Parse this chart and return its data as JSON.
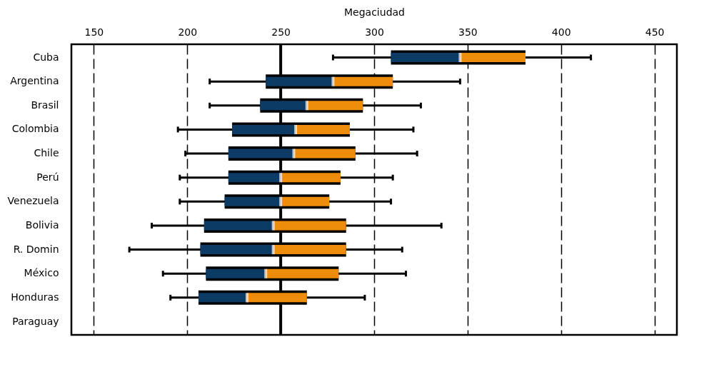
{
  "chart_data": {
    "type": "box",
    "orientation": "horizontal",
    "xlabel": "Megaciudad",
    "categories": [
      "Cuba",
      "Argentina",
      "Brasil",
      "Colombia",
      "Chile",
      "Perú",
      "Venezuela",
      "Bolivia",
      "R. Domin",
      "México",
      "Honduras",
      "Paraguay"
    ],
    "series": [
      {
        "colors": [
          [
            "#0c3b66",
            "#ee8c0c"
          ],
          [
            "#0c3b66",
            "#ee8c0c"
          ],
          [
            "#0c3b66",
            "#ee8c0c"
          ],
          [
            "#0c3b66",
            "#ee8c0c"
          ],
          [
            "#0c3b66",
            "#ee8c0c"
          ],
          [
            "#0c3b66",
            "#ee8c0c"
          ],
          [
            "#0c3b66",
            "#ee8c0c"
          ],
          [
            "#0c3b66",
            "#ee8c0c"
          ],
          [
            "#0c3b66",
            "#ee8c0c"
          ],
          [
            "#0c3b66",
            "#ee8c0c"
          ],
          [
            "#0c3b66",
            "#ee8c0c"
          ],
          null
        ],
        "boxes": [
          {
            "low": 278,
            "q1": 309,
            "median": 346,
            "q3": 381,
            "high": 416
          },
          {
            "low": 212,
            "q1": 242,
            "median": 278,
            "q3": 310,
            "high": 346
          },
          {
            "low": 212,
            "q1": 239,
            "median": 264,
            "q3": 294,
            "high": 325
          },
          {
            "low": 195,
            "q1": 224,
            "median": 258,
            "q3": 287,
            "high": 321
          },
          {
            "low": 199,
            "q1": 222,
            "median": 257,
            "q3": 290,
            "high": 323
          },
          {
            "low": 196,
            "q1": 222,
            "median": 250,
            "q3": 282,
            "high": 310
          },
          {
            "low": 196,
            "q1": 220,
            "median": 250,
            "q3": 276,
            "high": 309
          },
          {
            "low": 181,
            "q1": 209,
            "median": 246,
            "q3": 285,
            "high": 336
          },
          {
            "low": 169,
            "q1": 207,
            "median": 246,
            "q3": 285,
            "high": 315
          },
          {
            "low": 187,
            "q1": 210,
            "median": 242,
            "q3": 281,
            "high": 317
          },
          {
            "low": 191,
            "q1": 206,
            "median": 232,
            "q3": 264,
            "high": 295
          },
          null
        ]
      }
    ],
    "xlim": [
      138,
      462
    ],
    "xticks": [
      150,
      200,
      250,
      300,
      350,
      400,
      450
    ],
    "grid": "x",
    "ref_lines": [
      {
        "axis": "x",
        "value": 250
      }
    ]
  }
}
